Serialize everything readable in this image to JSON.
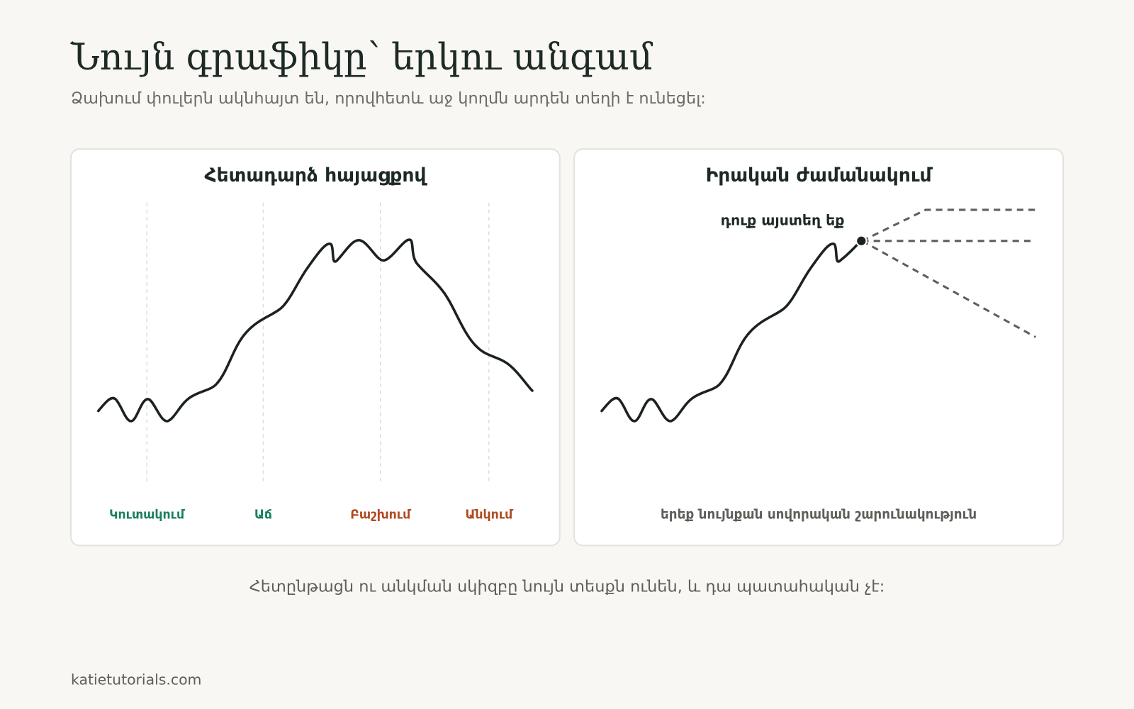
{
  "header": {
    "title": "Նույն գրաֆիկը՝ երկու անգամ",
    "subtitle": "Ձախում փուլերն ակնհայտ են, որովհետև աջ կողմն արդեն տեղի է ունեցել:"
  },
  "panels": [
    {
      "title": "Հետադարձ հայացքով",
      "phases": [
        "Կուտակում",
        "Աճ",
        "Բաշխում",
        "Անկում"
      ]
    },
    {
      "title": "Իրական ժամանակում",
      "annotation": "դուք այստեղ եք",
      "caption": "երեք նույնքան սովորական շարունակություն"
    }
  ],
  "footer": {
    "note": "Հետընթացն ու անկման սկիզբը նույն տեսքն ունեն, և դա պատահական չէ:",
    "source": "katietutorials.com"
  }
}
